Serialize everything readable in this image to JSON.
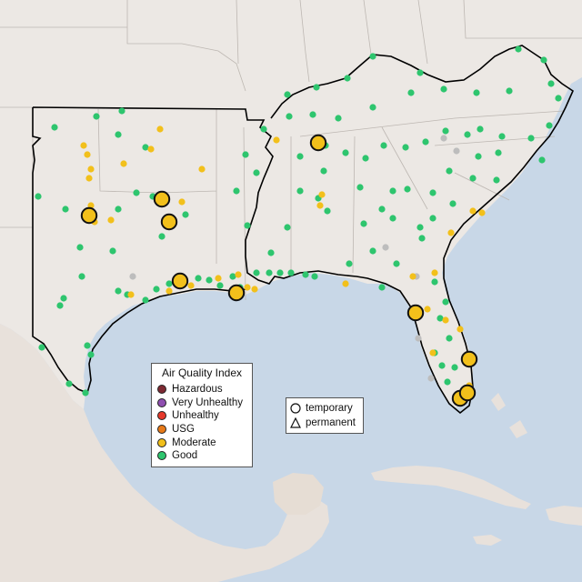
{
  "legend_aqi": {
    "title": "Air Quality Index",
    "items": [
      {
        "label": "Hazardous",
        "color": "#7e2a33"
      },
      {
        "label": "Very Unhealthy",
        "color": "#8f4fb0"
      },
      {
        "label": "Unhealthy",
        "color": "#e5392b"
      },
      {
        "label": "USG",
        "color": "#e77a19"
      },
      {
        "label": "Moderate",
        "color": "#f2c01b"
      },
      {
        "label": "Good",
        "color": "#2ec56e"
      }
    ]
  },
  "legend_type": {
    "items": [
      {
        "label": "temporary",
        "shape": "circle-icon"
      },
      {
        "label": "permanent",
        "shape": "triangle-icon"
      }
    ]
  },
  "colors": {
    "land": "#ece8e4",
    "water": "#c8d7e7",
    "good": "#2ec56e",
    "moderate": "#f2c01b",
    "no_data": "#bdbdbd",
    "region_outline": "#000000"
  }
}
